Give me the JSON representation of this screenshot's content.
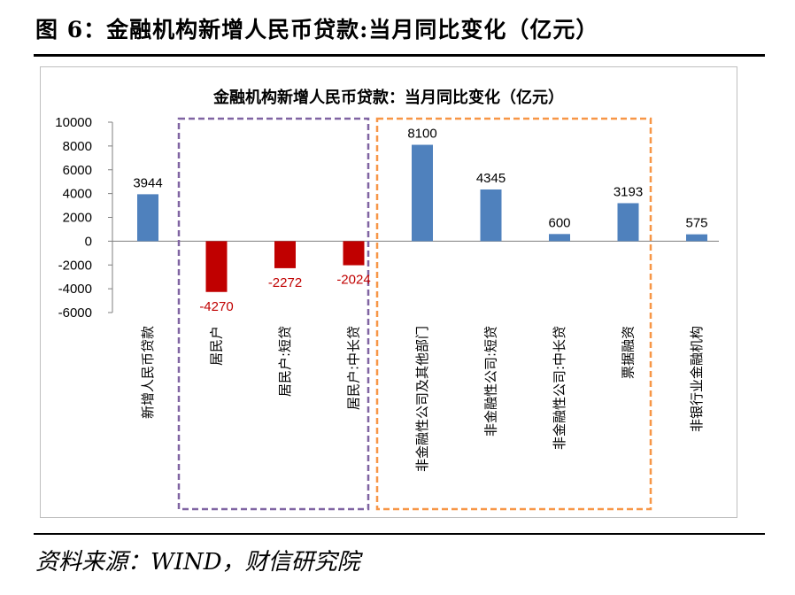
{
  "figure_title": "图 6：金融机构新增人民币贷款:当月同比变化（亿元）",
  "source": "资料来源：WIND，财信研究院",
  "colors": {
    "positive": "#4f81bd",
    "negative": "#c00000",
    "group_household": "#8064a2",
    "group_nonbank": "#f79646"
  },
  "chart_data": {
    "type": "bar",
    "title": "金融机构新增人民币贷款：当月同比变化（亿元）",
    "xlabel": "",
    "ylabel": "",
    "ylim": [
      -6000,
      10000
    ],
    "yticks": [
      10000,
      8000,
      6000,
      4000,
      2000,
      0,
      -2000,
      -4000,
      -6000
    ],
    "categories": [
      "新增人民币贷款",
      "居民户",
      "居民户:短贷",
      "居民户:中长贷",
      "非金融性公司及其他部门",
      "非金融性公司:短贷",
      "非金融性公司:中长贷",
      "票据融资",
      "非银行业金融机构"
    ],
    "values": [
      3944,
      -4270,
      -2272,
      -2024,
      8100,
      4345,
      600,
      3193,
      575
    ],
    "grid": false,
    "legend": "none"
  }
}
